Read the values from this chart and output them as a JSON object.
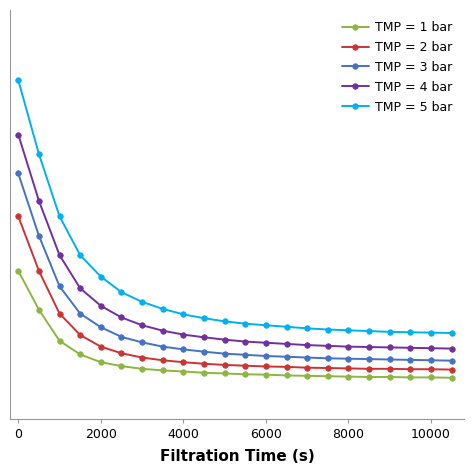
{
  "title": "",
  "xlabel": "Filtration Time (s)",
  "ylabel": "",
  "series": [
    {
      "label": "TMP = 1 bar",
      "color": "#8db641",
      "x": [
        0,
        500,
        1000,
        1500,
        2000,
        2500,
        3000,
        3500,
        4000,
        4500,
        5000,
        5500,
        6000,
        6500,
        7000,
        7500,
        8000,
        8500,
        9000,
        9500,
        10000,
        10500
      ],
      "y": [
        0.38,
        0.28,
        0.2,
        0.165,
        0.145,
        0.135,
        0.128,
        0.124,
        0.121,
        0.118,
        0.116,
        0.114,
        0.113,
        0.111,
        0.11,
        0.109,
        0.108,
        0.107,
        0.107,
        0.106,
        0.106,
        0.105
      ]
    },
    {
      "label": "TMP = 2 bar",
      "color": "#cc3333",
      "x": [
        0,
        500,
        1000,
        1500,
        2000,
        2500,
        3000,
        3500,
        4000,
        4500,
        5000,
        5500,
        6000,
        6500,
        7000,
        7500,
        8000,
        8500,
        9000,
        9500,
        10000,
        10500
      ],
      "y": [
        0.52,
        0.38,
        0.27,
        0.215,
        0.185,
        0.168,
        0.157,
        0.15,
        0.145,
        0.141,
        0.138,
        0.136,
        0.134,
        0.133,
        0.131,
        0.13,
        0.129,
        0.128,
        0.128,
        0.127,
        0.127,
        0.126
      ]
    },
    {
      "label": "TMP = 3 bar",
      "color": "#4472c4",
      "x": [
        0,
        500,
        1000,
        1500,
        2000,
        2500,
        3000,
        3500,
        4000,
        4500,
        5000,
        5500,
        6000,
        6500,
        7000,
        7500,
        8000,
        8500,
        9000,
        9500,
        10000,
        10500
      ],
      "y": [
        0.63,
        0.47,
        0.34,
        0.27,
        0.235,
        0.21,
        0.196,
        0.185,
        0.178,
        0.172,
        0.167,
        0.164,
        0.161,
        0.159,
        0.157,
        0.155,
        0.154,
        0.153,
        0.152,
        0.151,
        0.15,
        0.149
      ]
    },
    {
      "label": "TMP = 4 bar",
      "color": "#7030a0",
      "x": [
        0,
        500,
        1000,
        1500,
        2000,
        2500,
        3000,
        3500,
        4000,
        4500,
        5000,
        5500,
        6000,
        6500,
        7000,
        7500,
        8000,
        8500,
        9000,
        9500,
        10000,
        10500
      ],
      "y": [
        0.73,
        0.56,
        0.42,
        0.335,
        0.29,
        0.26,
        0.24,
        0.226,
        0.216,
        0.209,
        0.203,
        0.198,
        0.195,
        0.192,
        0.189,
        0.187,
        0.185,
        0.184,
        0.183,
        0.182,
        0.181,
        0.18
      ]
    },
    {
      "label": "TMP = 5 bar",
      "color": "#00b0f0",
      "x": [
        0,
        500,
        1000,
        1500,
        2000,
        2500,
        3000,
        3500,
        4000,
        4500,
        5000,
        5500,
        6000,
        6500,
        7000,
        7500,
        8000,
        8500,
        9000,
        9500,
        10000,
        10500
      ],
      "y": [
        0.87,
        0.68,
        0.52,
        0.42,
        0.365,
        0.325,
        0.3,
        0.282,
        0.268,
        0.258,
        0.25,
        0.244,
        0.24,
        0.236,
        0.232,
        0.229,
        0.227,
        0.225,
        0.223,
        0.222,
        0.221,
        0.22
      ]
    }
  ],
  "xlim": [
    -200,
    10800
  ],
  "ylim": [
    0,
    1.05
  ],
  "xticks": [
    0,
    2000,
    4000,
    6000,
    8000,
    10000
  ],
  "xlabel_fontsize": 11,
  "axis_tick_fontsize": 9,
  "legend_fontsize": 9,
  "line_width": 1.4,
  "marker_size": 4.0
}
